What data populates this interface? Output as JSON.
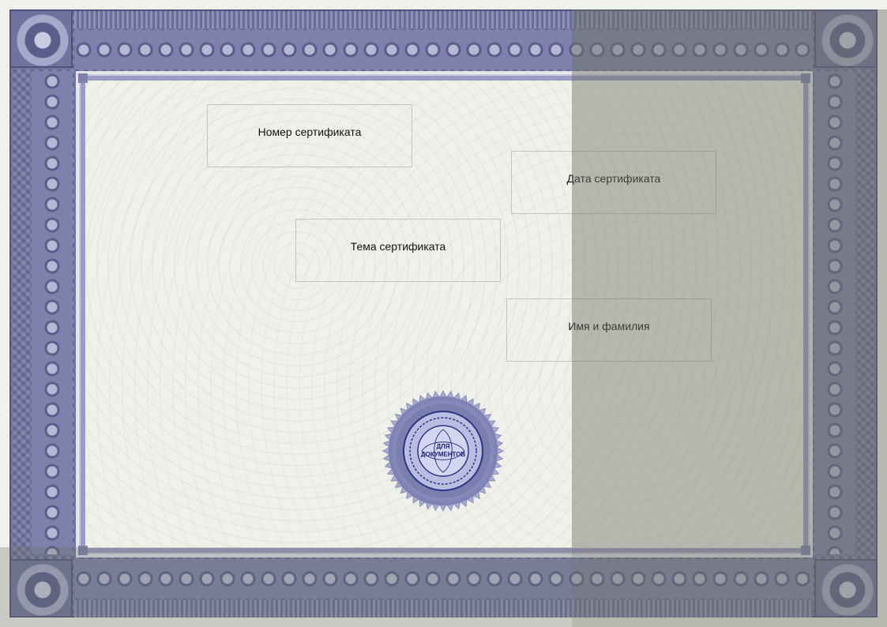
{
  "certificate": {
    "fields": {
      "number": "Номер сертификата",
      "date": "Дата сертификата",
      "topic": "Тема сертификата",
      "name": "Имя и фамилия"
    },
    "seal": {
      "center_text_line1": "ДЛЯ",
      "center_text_line2": "ДОКУМЕНТОВ"
    },
    "colors": {
      "frame": "#6c6f9b",
      "paper": "#f1f1ec",
      "seal": "#2c3486"
    }
  }
}
